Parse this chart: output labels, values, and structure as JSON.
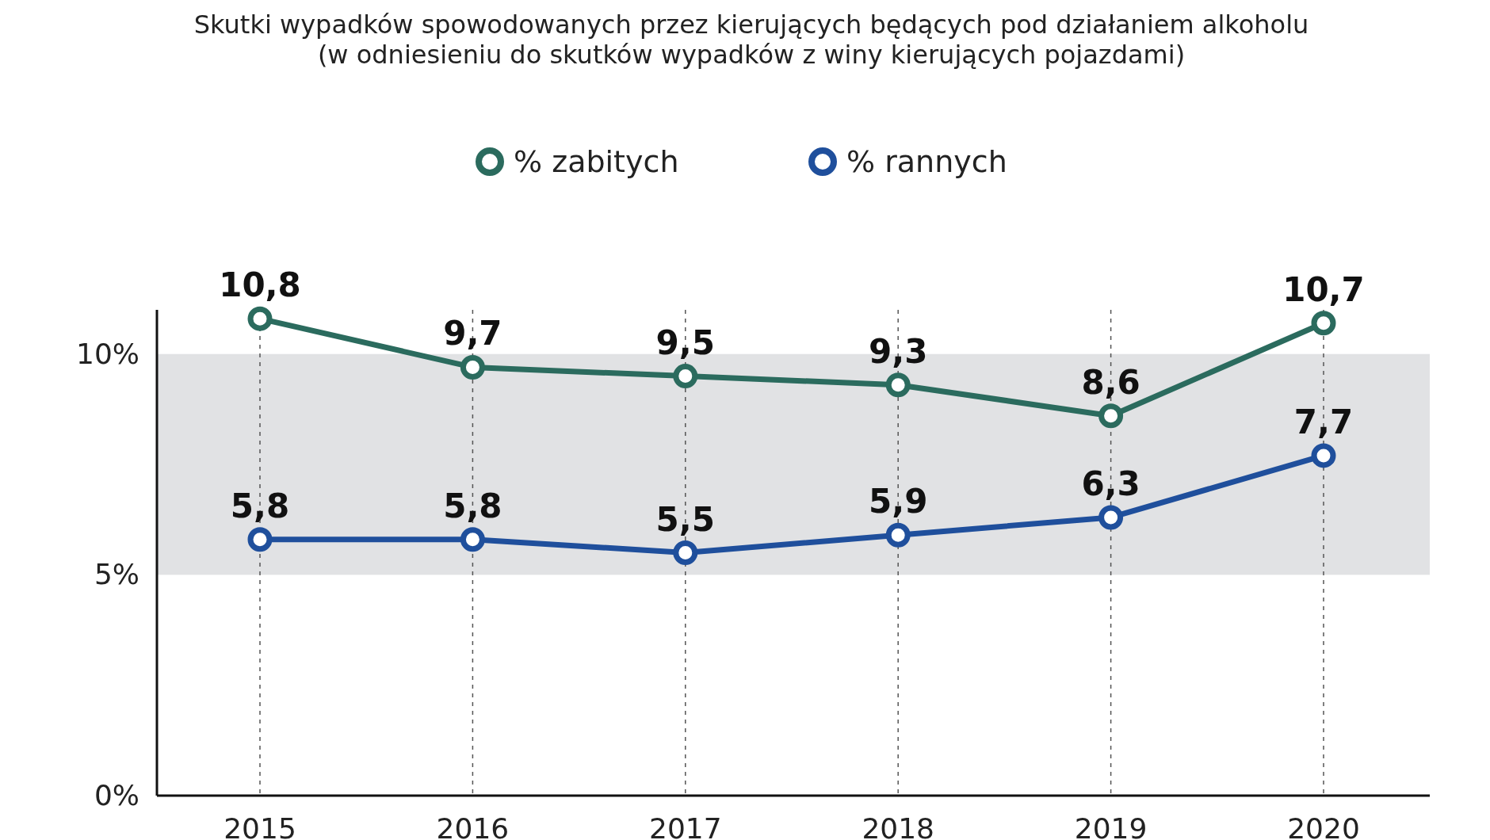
{
  "chart_data": {
    "type": "line",
    "title": "Skutki wypadków spowodowanych przez kierujących będących pod działaniem alkoholu",
    "subtitle": "(w odniesieniu do skutków wypadków z winy kierujących pojazdami)",
    "categories": [
      "2015",
      "2016",
      "2017",
      "2018",
      "2019",
      "2020"
    ],
    "series": [
      {
        "name": "% zabitych",
        "color": "#2b6b5e",
        "values": [
          10.8,
          9.7,
          9.5,
          9.3,
          8.6,
          10.7
        ],
        "value_labels": [
          "10,8",
          "9,7",
          "9,5",
          "9,3",
          "8,6",
          "10,7"
        ]
      },
      {
        "name": "% rannych",
        "color": "#1f4f9c",
        "values": [
          5.8,
          5.8,
          5.5,
          5.9,
          6.3,
          7.7
        ],
        "value_labels": [
          "5,8",
          "5,8",
          "5,5",
          "5,9",
          "6,3",
          "7,7"
        ]
      }
    ],
    "ylim": [
      0,
      11
    ],
    "yticks": [
      {
        "value": 0,
        "label": "0%"
      },
      {
        "value": 5,
        "label": "5%"
      },
      {
        "value": 10,
        "label": "10%"
      }
    ],
    "bands": [
      {
        "axis": "y",
        "from": 5,
        "to": 10,
        "color": "#e1e2e4"
      }
    ],
    "grid": "x",
    "legend": "top",
    "marker": "circle",
    "line_style": "solid"
  }
}
